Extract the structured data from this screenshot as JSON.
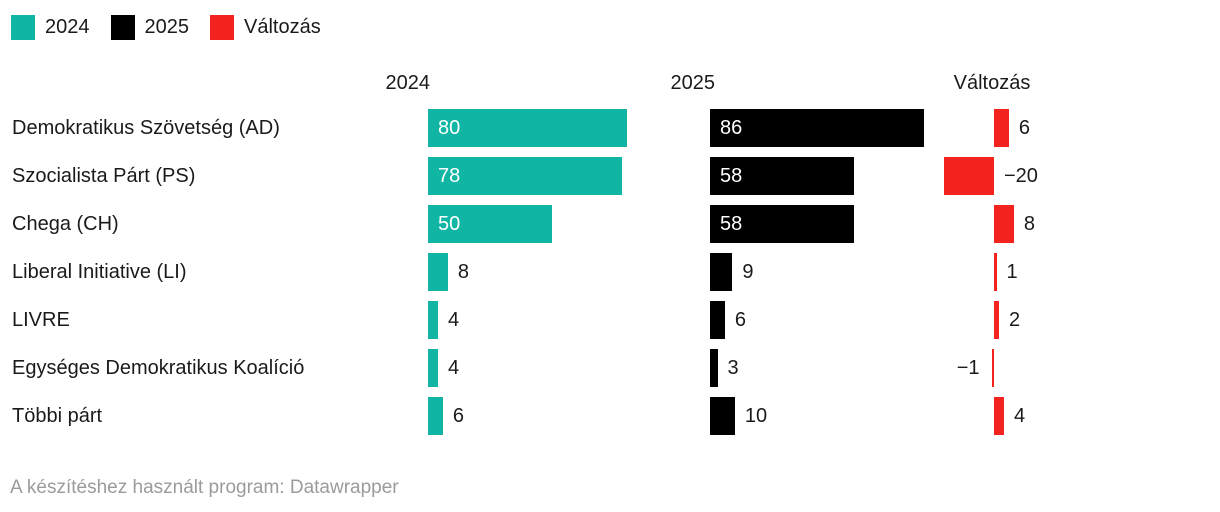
{
  "chart_data": {
    "type": "bar",
    "orientation": "horizontal",
    "layout": "small-multiple-columns",
    "grid": false,
    "legend_position": "top-left",
    "columns": [
      "2024",
      "2025",
      "Változás"
    ],
    "categories": [
      "Demokratikus Szövetség (AD)",
      "Szocialista Párt (PS)",
      "Chega (CH)",
      "Liberal Initiative (LI)",
      "LIVRE",
      "Egységes Demokratikus Koalíció",
      "Többi párt"
    ],
    "series": [
      {
        "name": "2024",
        "color": "#10b6a3",
        "values": [
          80,
          78,
          50,
          8,
          4,
          4,
          6
        ]
      },
      {
        "name": "2025",
        "color": "#000000",
        "values": [
          86,
          58,
          58,
          9,
          6,
          3,
          10
        ]
      },
      {
        "name": "Változás",
        "color": "#f3231f",
        "values": [
          6,
          -20,
          8,
          1,
          2,
          -1,
          4
        ]
      }
    ],
    "legend": [
      {
        "label": "2024",
        "color": "#10b6a3"
      },
      {
        "label": "2025",
        "color": "#000000"
      },
      {
        "label": "Változás",
        "color": "#f3231f"
      }
    ],
    "value_range_per_column": [
      0,
      86
    ],
    "footer": "A készítéshez használt program: Datawrapper",
    "colors": {
      "text": "#1a1a1a",
      "value_inside": "#ffffff",
      "footer_text": "#9b9b9b",
      "background": "#ffffff"
    }
  }
}
